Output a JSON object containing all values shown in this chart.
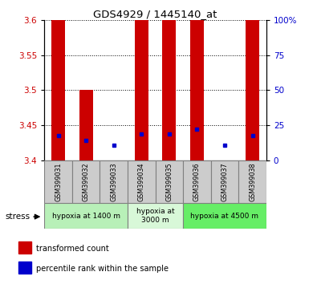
{
  "title": "GDS4929 / 1445140_at",
  "samples": [
    "GSM399031",
    "GSM399032",
    "GSM399033",
    "GSM399034",
    "GSM399035",
    "GSM399036",
    "GSM399037",
    "GSM399038"
  ],
  "red_bar_top": [
    3.6,
    3.5,
    3.4,
    3.6,
    3.6,
    3.6,
    3.4,
    3.6
  ],
  "red_bar_bottom": [
    3.4,
    3.4,
    3.398,
    3.4,
    3.4,
    3.4,
    3.398,
    3.4
  ],
  "blue_dot_y": [
    3.435,
    3.428,
    3.422,
    3.438,
    3.438,
    3.445,
    3.422,
    3.435
  ],
  "ylim_left": [
    3.4,
    3.6
  ],
  "yticks_left": [
    3.4,
    3.45,
    3.5,
    3.55,
    3.6
  ],
  "ylim_right": [
    0,
    100
  ],
  "yticks_right": [
    0,
    25,
    50,
    75,
    100
  ],
  "ytick_labels_right": [
    "0",
    "25",
    "50",
    "75",
    "100%"
  ],
  "groups": [
    {
      "label": "hypoxia at 1400 m",
      "start": 0,
      "end": 3,
      "color": "#b8f0b8"
    },
    {
      "label": "hypoxia at\n3000 m",
      "start": 3,
      "end": 5,
      "color": "#d8f8d8"
    },
    {
      "label": "hypoxia at 4500 m",
      "start": 5,
      "end": 8,
      "color": "#66ee66"
    }
  ],
  "stress_label": "stress",
  "legend_items": [
    {
      "color": "#cc0000",
      "label": "transformed count"
    },
    {
      "color": "#0000cc",
      "label": "percentile rank within the sample"
    }
  ],
  "red_color": "#cc0000",
  "blue_color": "#0000cc",
  "bar_width": 0.5,
  "sample_box_color": "#cccccc",
  "fig_width": 3.95,
  "fig_height": 3.54,
  "fig_dpi": 100
}
